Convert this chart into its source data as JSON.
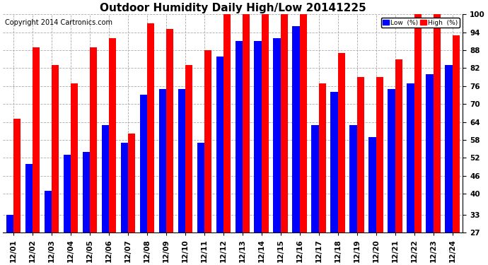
{
  "title": "Outdoor Humidity Daily High/Low 20141225",
  "copyright": "Copyright 2014 Cartronics.com",
  "dates": [
    "12/01",
    "12/02",
    "12/03",
    "12/04",
    "12/05",
    "12/06",
    "12/07",
    "12/08",
    "12/09",
    "12/10",
    "12/11",
    "12/12",
    "12/13",
    "12/14",
    "12/15",
    "12/16",
    "12/17",
    "12/18",
    "12/19",
    "12/20",
    "12/21",
    "12/22",
    "12/23",
    "12/24"
  ],
  "low_values": [
    33,
    50,
    41,
    53,
    54,
    63,
    57,
    73,
    75,
    75,
    57,
    86,
    91,
    91,
    92,
    96,
    63,
    74,
    63,
    59,
    75,
    77,
    80,
    83
  ],
  "high_values": [
    65,
    89,
    83,
    77,
    89,
    92,
    60,
    97,
    95,
    83,
    88,
    100,
    100,
    100,
    100,
    100,
    77,
    87,
    79,
    79,
    85,
    100,
    100,
    93
  ],
  "low_color": "#0000ff",
  "high_color": "#ff0000",
  "bg_color": "#ffffff",
  "grid_color": "#aaaaaa",
  "ymin": 27,
  "ymax": 100,
  "yticks": [
    27,
    33,
    40,
    46,
    52,
    58,
    64,
    70,
    76,
    82,
    88,
    94,
    100
  ],
  "legend_low_label": "Low  (%)",
  "legend_high_label": "High  (%)",
  "title_fontsize": 11,
  "copyright_fontsize": 7,
  "tick_fontsize": 7.5,
  "bar_width": 0.38
}
